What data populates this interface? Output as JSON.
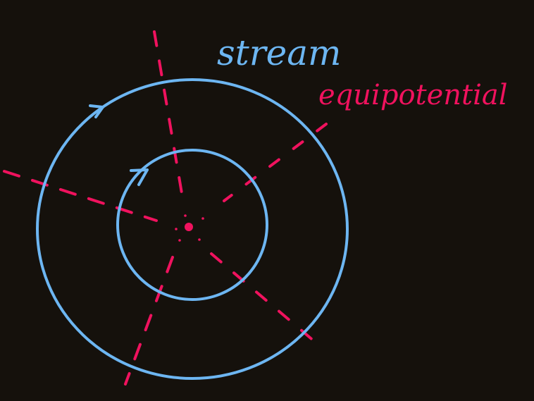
{
  "labels": {
    "stream": "stream",
    "equipotential": "equipotential"
  },
  "colors": {
    "background": "#15110c",
    "stream": "#6db6f2",
    "equipotential": "#f0125e"
  }
}
